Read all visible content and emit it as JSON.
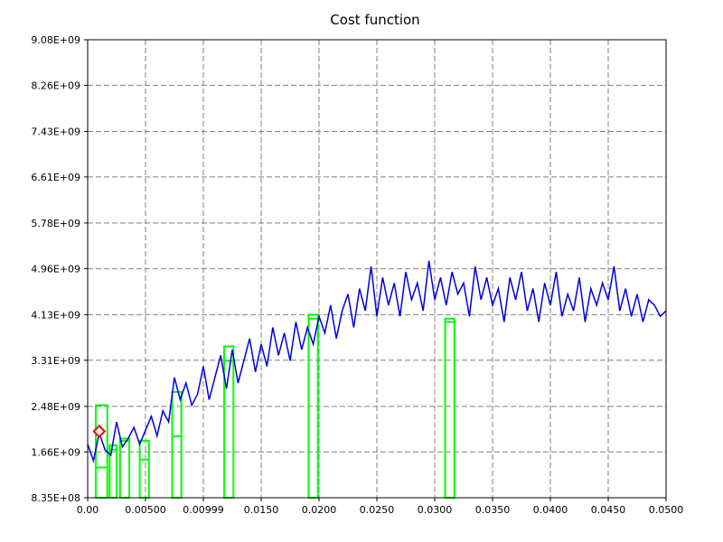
{
  "chart_data": {
    "type": "line",
    "title": "Cost function",
    "xlabel": "",
    "ylabel": "",
    "xlim": [
      0.0,
      0.05
    ],
    "ylim": [
      835000000,
      9080000000
    ],
    "x_ticks": [
      {
        "value": 0.0,
        "label": "0.00"
      },
      {
        "value": 0.005,
        "label": "0.00500"
      },
      {
        "value": 0.01,
        "label": "0.00999"
      },
      {
        "value": 0.015,
        "label": "0.0150"
      },
      {
        "value": 0.02,
        "label": "0.0200"
      },
      {
        "value": 0.025,
        "label": "0.0250"
      },
      {
        "value": 0.03,
        "label": "0.0300"
      },
      {
        "value": 0.035,
        "label": "0.0350"
      },
      {
        "value": 0.04,
        "label": "0.0400"
      },
      {
        "value": 0.045,
        "label": "0.0450"
      },
      {
        "value": 0.05,
        "label": "0.0500"
      }
    ],
    "y_ticks": [
      {
        "value": 835000000,
        "label": "8.35E+08"
      },
      {
        "value": 1660000000,
        "label": "1.66E+09"
      },
      {
        "value": 2480000000,
        "label": "2.48E+09"
      },
      {
        "value": 3310000000,
        "label": "3.31E+09"
      },
      {
        "value": 4130000000,
        "label": "4.13E+09"
      },
      {
        "value": 4960000000,
        "label": "4.96E+09"
      },
      {
        "value": 5780000000,
        "label": "5.78E+09"
      },
      {
        "value": 6610000000,
        "label": "6.61E+09"
      },
      {
        "value": 7430000000,
        "label": "7.43E+09"
      },
      {
        "value": 8260000000,
        "label": "8.26E+09"
      },
      {
        "value": 9080000000,
        "label": "9.08E+09"
      }
    ],
    "grid": true,
    "series": [
      {
        "color": "#0000dd",
        "x": [
          0.0,
          0.0005,
          0.001,
          0.0015,
          0.002,
          0.0025,
          0.003,
          0.0035,
          0.004,
          0.0045,
          0.005,
          0.0055,
          0.006,
          0.0065,
          0.007,
          0.0075,
          0.008,
          0.0085,
          0.009,
          0.0095,
          0.01,
          0.0105,
          0.011,
          0.0115,
          0.012,
          0.0125,
          0.013,
          0.0135,
          0.014,
          0.0145,
          0.015,
          0.0155,
          0.016,
          0.0165,
          0.017,
          0.0175,
          0.018,
          0.0185,
          0.019,
          0.0195,
          0.02,
          0.0205,
          0.021,
          0.0215,
          0.022,
          0.0225,
          0.023,
          0.0235,
          0.024,
          0.0245,
          0.025,
          0.0255,
          0.026,
          0.0265,
          0.027,
          0.0275,
          0.028,
          0.0285,
          0.029,
          0.0295,
          0.03,
          0.0305,
          0.031,
          0.0315,
          0.032,
          0.0325,
          0.033,
          0.0335,
          0.034,
          0.0345,
          0.035,
          0.0355,
          0.036,
          0.0365,
          0.037,
          0.0375,
          0.038,
          0.0385,
          0.039,
          0.0395,
          0.04,
          0.0405,
          0.041,
          0.0415,
          0.042,
          0.0425,
          0.043,
          0.0435,
          0.044,
          0.0445,
          0.045,
          0.0455,
          0.046,
          0.0465,
          0.047,
          0.0475,
          0.048,
          0.0485,
          0.049,
          0.0495,
          0.05
        ],
        "y": [
          1800000000,
          1500000000,
          2000000000,
          1700000000,
          1600000000,
          2200000000,
          1750000000,
          1900000000,
          2100000000,
          1800000000,
          2050000000,
          2300000000,
          1950000000,
          2400000000,
          2200000000,
          3000000000,
          2600000000,
          2900000000,
          2500000000,
          2700000000,
          3200000000,
          2600000000,
          3000000000,
          3400000000,
          2800000000,
          3500000000,
          2900000000,
          3300000000,
          3700000000,
          3100000000,
          3600000000,
          3200000000,
          3900000000,
          3400000000,
          3800000000,
          3300000000,
          4000000000,
          3500000000,
          3900000000,
          3600000000,
          4100000000,
          3800000000,
          4300000000,
          3700000000,
          4200000000,
          4500000000,
          3900000000,
          4600000000,
          4200000000,
          5000000000,
          4100000000,
          4800000000,
          4300000000,
          4700000000,
          4100000000,
          4900000000,
          4400000000,
          4700000000,
          4200000000,
          5100000000,
          4400000000,
          4800000000,
          4300000000,
          4900000000,
          4500000000,
          4700000000,
          4100000000,
          5000000000,
          4400000000,
          4800000000,
          4300000000,
          4600000000,
          4000000000,
          4800000000,
          4400000000,
          4900000000,
          4200000000,
          4600000000,
          4000000000,
          4700000000,
          4300000000,
          4900000000,
          4100000000,
          4500000000,
          4200000000,
          4800000000,
          4000000000,
          4600000000,
          4300000000,
          4700000000,
          4400000000,
          5000000000,
          4200000000,
          4600000000,
          4100000000,
          4500000000,
          4000000000,
          4400000000,
          4300000000,
          4100000000,
          4200000000
        ]
      }
    ],
    "boxes": [
      {
        "x0": 0.0007,
        "x1": 0.0017,
        "y0": 835000000,
        "y1": 2500000000,
        "mid": 1380000000
      },
      {
        "x0": 0.0019,
        "x1": 0.0025,
        "y0": 835000000,
        "y1": 1780000000,
        "mid": 1700000000
      },
      {
        "x0": 0.0028,
        "x1": 0.0036,
        "y0": 835000000,
        "y1": 1900000000,
        "mid": 1860000000
      },
      {
        "x0": 0.0045,
        "x1": 0.0053,
        "y0": 835000000,
        "y1": 1860000000,
        "mid": 1520000000
      },
      {
        "x0": 0.0073,
        "x1": 0.0081,
        "y0": 835000000,
        "y1": 2740000000,
        "mid": 1940000000
      },
      {
        "x0": 0.0118,
        "x1": 0.0126,
        "y0": 835000000,
        "y1": 3560000000,
        "mid": 3300000000
      },
      {
        "x0": 0.0191,
        "x1": 0.0199,
        "y0": 835000000,
        "y1": 4130000000,
        "mid": 4060000000
      },
      {
        "x0": 0.0309,
        "x1": 0.0317,
        "y0": 835000000,
        "y1": 4060000000,
        "mid": 4000000000
      }
    ],
    "marker": {
      "x": 0.001,
      "y": 2030000000,
      "color": "#ff0000",
      "shape": "diamond"
    },
    "colors": {
      "series": "#0000dd",
      "box": "#00ff00",
      "grid": "#808080",
      "marker": "#ff0000"
    }
  }
}
